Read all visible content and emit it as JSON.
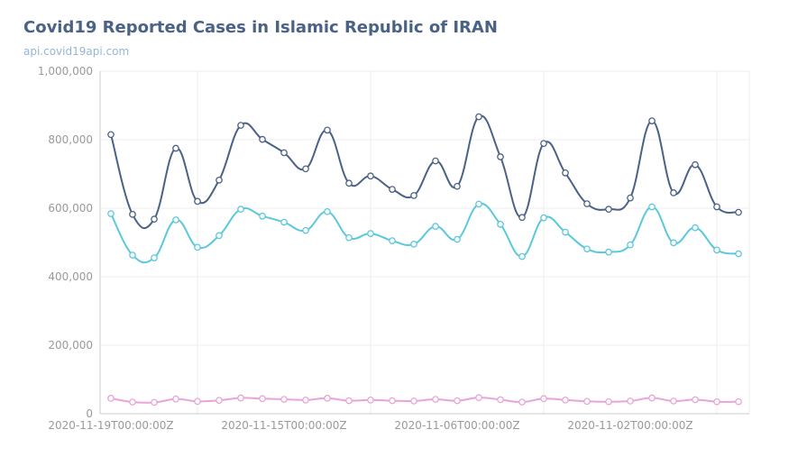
{
  "chart_data": {
    "type": "line",
    "title": "Covid19 Reported Cases in Islamic Republic of IRAN",
    "subtitle": "api.covid19api.com",
    "x_tick_labels": [
      "2020-11-19T00:00:00Z",
      "2020-11-15T00:00:00Z",
      "2020-11-06T00:00:00Z",
      "2020-11-02T00:00:00Z"
    ],
    "y_ticks": [
      0,
      200000,
      400000,
      600000,
      800000,
      1000000
    ],
    "y_tick_labels": [
      "0",
      "200,000",
      "400,000",
      "600,000",
      "800,000",
      "1,000,000"
    ],
    "ylim": [
      0,
      1000000
    ],
    "grid": true,
    "legend": "none",
    "series": [
      {
        "color": "#4a6285",
        "values": [
          815000,
          582000,
          568000,
          775000,
          620000,
          682000,
          842000,
          801000,
          762000,
          715000,
          828000,
          673000,
          694000,
          655000,
          637000,
          738000,
          664000,
          867000,
          750000,
          573000,
          789000,
          703000,
          613000,
          597000,
          630000,
          855000,
          645000,
          727000,
          604000,
          588000
        ]
      },
      {
        "color": "#5bc8dc",
        "values": [
          584000,
          463000,
          455000,
          566000,
          486000,
          520000,
          597000,
          577000,
          559000,
          535000,
          590000,
          514000,
          526000,
          505000,
          495000,
          547000,
          509000,
          612000,
          553000,
          459000,
          572000,
          530000,
          481000,
          472000,
          493000,
          604000,
          499000,
          543000,
          478000,
          467000
        ]
      },
      {
        "color": "#e8a4d8",
        "values": [
          45000,
          34000,
          33000,
          43000,
          36000,
          39000,
          46000,
          44000,
          42000,
          40000,
          45000,
          38000,
          40000,
          38000,
          37000,
          42000,
          38000,
          47000,
          41000,
          34000,
          44000,
          40000,
          36000,
          35000,
          37000,
          46000,
          37000,
          41000,
          35000,
          35000
        ]
      }
    ]
  }
}
